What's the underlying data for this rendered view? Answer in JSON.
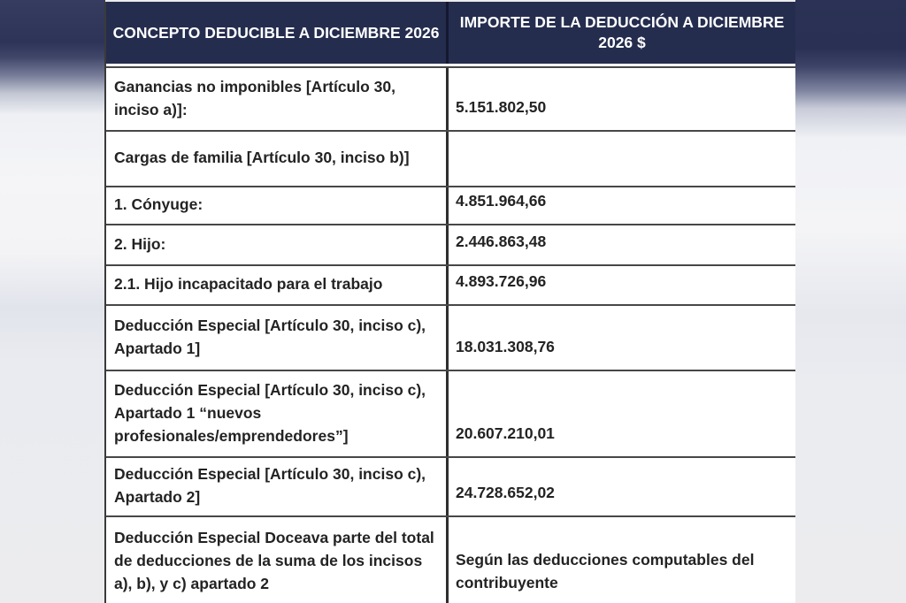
{
  "page": {
    "background_color": "#ececee",
    "accent_navy": "#252d4f"
  },
  "table": {
    "header": {
      "concept": "CONCEPTO DEDUCIBLE A DICIEMBRE 2026",
      "amount": "IMPORTE DE LA DEDUCCIÓN A DICIEMBRE 2026 $"
    },
    "rows": [
      {
        "concept": "Ganancias no imponibles [Artículo 30, inciso a)]:",
        "amount": "5.151.802,50"
      },
      {
        "concept": "Cargas de familia [Artículo 30, inciso b)]",
        "amount": ""
      },
      {
        "concept": "1. Cónyuge:",
        "amount": "4.851.964,66"
      },
      {
        "concept": "2. Hijo:",
        "amount": "2.446.863,48"
      },
      {
        "concept": "2.1. Hijo incapacitado para el trabajo",
        "amount": "4.893.726,96"
      },
      {
        "concept": "Deducción Especial [Artículo 30, inciso c), Apartado 1]",
        "amount": "18.031.308,76"
      },
      {
        "concept": "Deducción Especial [Artículo 30, inciso c), Apartado 1 “nuevos profesionales/emprendedores”]",
        "amount": "20.607.210,01"
      },
      {
        "concept": "Deducción Especial [Artículo 30, inciso c), Apartado 2]",
        "amount": "24.728.652,02"
      },
      {
        "concept": "Deducción Especial Doceava parte del total de deducciones de la suma de los incisos a), b), y c) apartado 2",
        "amount": "Según las deducciones computables del contribuyente"
      }
    ]
  }
}
